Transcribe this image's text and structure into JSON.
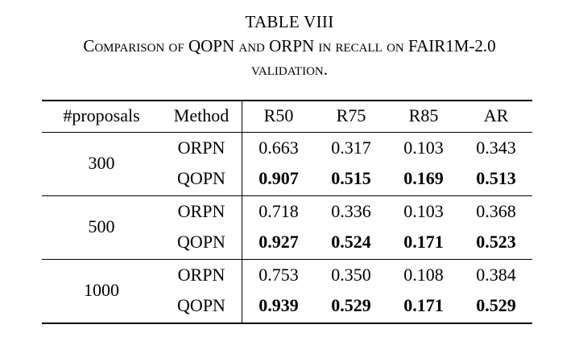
{
  "caption": {
    "label": "TABLE VIII",
    "title_line1": "Comparison of QOPN and ORPN in recall on FAIR1M-2.0",
    "title_line2": "validation."
  },
  "table": {
    "headers": [
      "#proposals",
      "Method",
      "R50",
      "R75",
      "R85",
      "AR"
    ],
    "groups": [
      {
        "proposals": "300",
        "rows": [
          {
            "method": "ORPN",
            "values": [
              "0.663",
              "0.317",
              "0.103",
              "0.343"
            ],
            "bold": false
          },
          {
            "method": "QOPN",
            "values": [
              "0.907",
              "0.515",
              "0.169",
              "0.513"
            ],
            "bold": true
          }
        ]
      },
      {
        "proposals": "500",
        "rows": [
          {
            "method": "ORPN",
            "values": [
              "0.718",
              "0.336",
              "0.103",
              "0.368"
            ],
            "bold": false
          },
          {
            "method": "QOPN",
            "values": [
              "0.927",
              "0.524",
              "0.171",
              "0.523"
            ],
            "bold": true
          }
        ]
      },
      {
        "proposals": "1000",
        "rows": [
          {
            "method": "ORPN",
            "values": [
              "0.753",
              "0.350",
              "0.108",
              "0.384"
            ],
            "bold": false
          },
          {
            "method": "QOPN",
            "values": [
              "0.939",
              "0.529",
              "0.171",
              "0.529"
            ],
            "bold": true
          }
        ]
      }
    ]
  }
}
